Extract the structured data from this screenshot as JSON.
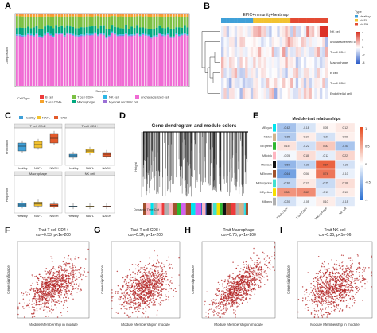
{
  "panel_labels": {
    "a": "A",
    "b": "B",
    "c": "C",
    "d": "D",
    "e": "E",
    "f": "F",
    "g": "G",
    "h": "H",
    "i": "I"
  },
  "panel_a": {
    "ylabel": "Composition",
    "xlabel": "Samples",
    "legend_title": "CellType",
    "legend": [
      "B cell",
      "T cell CD4+",
      "T cell CD8+",
      "Macrophage",
      "NK cell",
      "Myeloid dendritic cell",
      "uncharacterized cell"
    ],
    "colors": [
      "#ee3b3b",
      "#f6a32b",
      "#7bc043",
      "#00a87e",
      "#2cb7e6",
      "#9b6fd6",
      "#f06bd4"
    ]
  },
  "panel_b": {
    "title": "EPIC+immunity+heatmap",
    "type_legend_title": "Type",
    "type_legend": [
      "Healthy",
      "NAFL",
      "NASH"
    ],
    "type_colors": [
      "#3fa0d8",
      "#f2c230",
      "#e34a33"
    ],
    "rows": [
      "NK cell",
      "uncharacterized cell",
      "T cell CD4+",
      "Macrophage",
      "B cell",
      "T cell CD8+",
      "Endothelial cell"
    ],
    "scale": [
      "4",
      "2",
      "0",
      "-2",
      "-4"
    ]
  },
  "panel_c": {
    "legend": [
      "Healthy",
      "NAFL",
      "NASH"
    ],
    "colors": [
      "#3fa0d8",
      "#f2c230",
      "#e35a2b"
    ],
    "groups": [
      "Healthy",
      "NAFL",
      "NASH"
    ],
    "subpanels": [
      "T cell CD4+",
      "T cell CD8+",
      "Macrophage",
      "NK cell"
    ],
    "ylabel": "Proportion"
  },
  "panel_d": {
    "title": "Gene dendrogram and module colors",
    "ylabel": "Height",
    "bar_label": "Dynamic Tree Cut"
  },
  "panel_e": {
    "title": "Module-trait relationships",
    "modules": [
      "MEcyan",
      "MEtan",
      "MEgreen",
      "MEpink",
      "MEblack",
      "MEbrown",
      "MEturquoise",
      "MEyellow",
      "MEgrey"
    ],
    "module_colors": [
      "#00e5ee",
      "#d2b48c",
      "#2eb82e",
      "#ffb6c1",
      "#111111",
      "#a0522d",
      "#40e0d0",
      "#f5e000",
      "#b0b0b0"
    ],
    "traits": [
      "T cell CD4+",
      "T cell CD8+",
      "Macrophage",
      "NK cell"
    ],
    "scale": [
      "1",
      "0.5",
      "0",
      "-0.5",
      "-1"
    ],
    "values": [
      [
        -0.42,
        -0.18,
        0.05,
        0.12
      ],
      [
        -0.35,
        0.1,
        -0.2,
        0.08
      ],
      [
        0.15,
        -0.22,
        0.3,
        -0.4
      ],
      [
        -0.05,
        0.18,
        -0.12,
        0.22
      ],
      [
        -0.5,
        -0.3,
        0.84,
        -0.2
      ],
      [
        -0.64,
        0.06,
        0.74,
        -0.1
      ],
      [
        -0.3,
        0.12,
        -0.25,
        0.18
      ],
      [
        0.58,
        0.62,
        -0.15,
        0.1
      ],
      [
        -0.2,
        -0.05,
        0.1,
        -0.15
      ]
    ]
  },
  "scatters": [
    {
      "title": "Trait T cell CD4+",
      "stats": "cor=0.53, p<1e-200",
      "xlabel": "Module Membership in module",
      "ylabel": "Gene significance",
      "r": 0.53
    },
    {
      "title": "Trait T cell CD8+",
      "stats": "cor=0.34, p<1e-200",
      "xlabel": "Module Membership in module",
      "ylabel": "Gene significance",
      "r": 0.34
    },
    {
      "title": "Trait Macrophage",
      "stats": "cor=0.75, p<1e-200",
      "xlabel": "Module Membership in module",
      "ylabel": "Gene significance",
      "r": 0.75
    },
    {
      "title": "Trait NK cell",
      "stats": "cor=0.35, p<1e-96",
      "xlabel": "Module Membership in module",
      "ylabel": "Gene significance",
      "r": 0.35
    }
  ],
  "point_color": "#b22222"
}
